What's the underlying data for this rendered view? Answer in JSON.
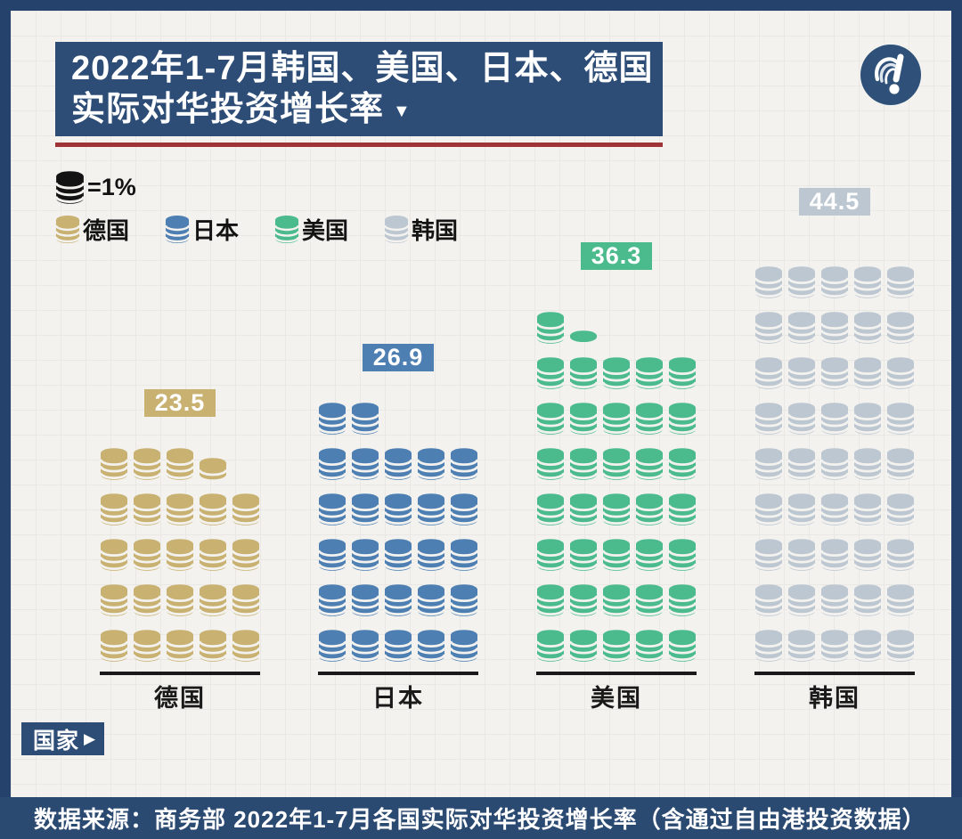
{
  "title": {
    "line1": "2022年1-7月韩国、美国、日本、德国",
    "line2": "实际对华投资增长率",
    "dropdown_arrow": "▼"
  },
  "legend": {
    "unit": {
      "label": "=1%",
      "coin_color": "#131313"
    },
    "items": [
      {
        "label": "德国",
        "color": "#c8b171"
      },
      {
        "label": "日本",
        "color": "#4d7fb2"
      },
      {
        "label": "美国",
        "color": "#4bbb8d"
      },
      {
        "label": "韩国",
        "color": "#bdc7d1"
      }
    ]
  },
  "axis_tag": {
    "label": "国家",
    "arrow": "▶"
  },
  "footer": {
    "source": "数据来源：商务部 2022年1-7月各国实际对华投资增长率（含通过自由港投资数据）"
  },
  "colors": {
    "frame_navy": "#24426b",
    "banner_navy": "#2d4d77",
    "footer_navy": "#2b4a72",
    "red_accent": "#9e3438",
    "paper": "#f3f2ef"
  },
  "chart_data": {
    "type": "pictogram-bar",
    "title": "2022年1-7月韩国、美国、日本、德国实际对华投资增长率",
    "unit_label": "=1%",
    "unit_value_pct": 1,
    "coins_per_row": 5,
    "categories": [
      "德国",
      "日本",
      "美国",
      "韩国"
    ],
    "values": [
      23.5,
      26.9,
      36.3,
      44.5
    ],
    "xlabel": "国家",
    "ylabel": "实际对华投资增长率(%)",
    "legend_position": "top-left",
    "series": [
      {
        "label": "德国",
        "value": 23.5,
        "display_value": "23.5",
        "color": "#c8b171",
        "full_coins": 23,
        "partial_coin": "half"
      },
      {
        "label": "日本",
        "value": 26.9,
        "display_value": "26.9",
        "color": "#4d7fb2",
        "full_coins": 26,
        "partial_coin": "full"
      },
      {
        "label": "美国",
        "value": 36.3,
        "display_value": "36.3",
        "color": "#4bbb8d",
        "full_coins": 36,
        "partial_coin": "flat"
      },
      {
        "label": "韩国",
        "value": 44.5,
        "display_value": "44.5",
        "color": "#bdc7d1",
        "full_coins": 44,
        "partial_coin": "half"
      }
    ]
  }
}
